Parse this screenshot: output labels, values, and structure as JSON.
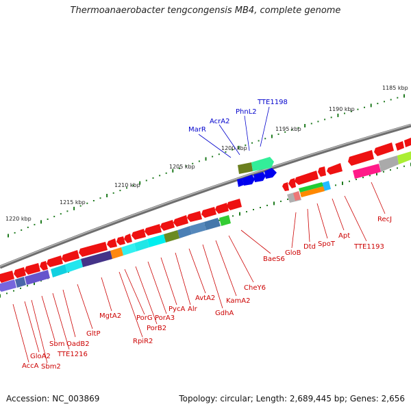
{
  "title": "Thermoanaerobacter tengcongensis MB4, complete genome",
  "footer": {
    "accession": "Accession: NC_003869",
    "topology": "Topology: circular; Length: 2,689,445 bp; Genes: 2,656"
  },
  "scale_labels": [
    {
      "text": "1185 kbp"
    },
    {
      "text": "1190 kbp"
    },
    {
      "text": "1195 kbp"
    },
    {
      "text": "1200 kbp"
    },
    {
      "text": "1205 kbp"
    },
    {
      "text": "1210 kbp"
    },
    {
      "text": "1215 kbp"
    },
    {
      "text": "1220 kbp"
    }
  ],
  "genes_forward": [
    "MarR",
    "AcrA2",
    "PhnL2",
    "TTE1198"
  ],
  "genes_reverse": [
    "RecJ",
    "TTE1193",
    "Apt",
    "SpoT",
    "Dtd",
    "GloB",
    "BaeS6",
    "CheY6",
    "KamA2",
    "GdhA",
    "AvtA2",
    "Alr",
    "PycA",
    "PorA3",
    "PorB2",
    "PorG",
    "RpiR2",
    "MgtA2",
    "GltP",
    "OadB2",
    "TTE1216",
    "Sbm",
    "Sbm2",
    "GloA2",
    "AccA"
  ],
  "colors": {
    "forward_label": "#0000cc",
    "reverse_label": "#cc0000",
    "backbone": "#888888",
    "tick": "#1e7a1e"
  }
}
